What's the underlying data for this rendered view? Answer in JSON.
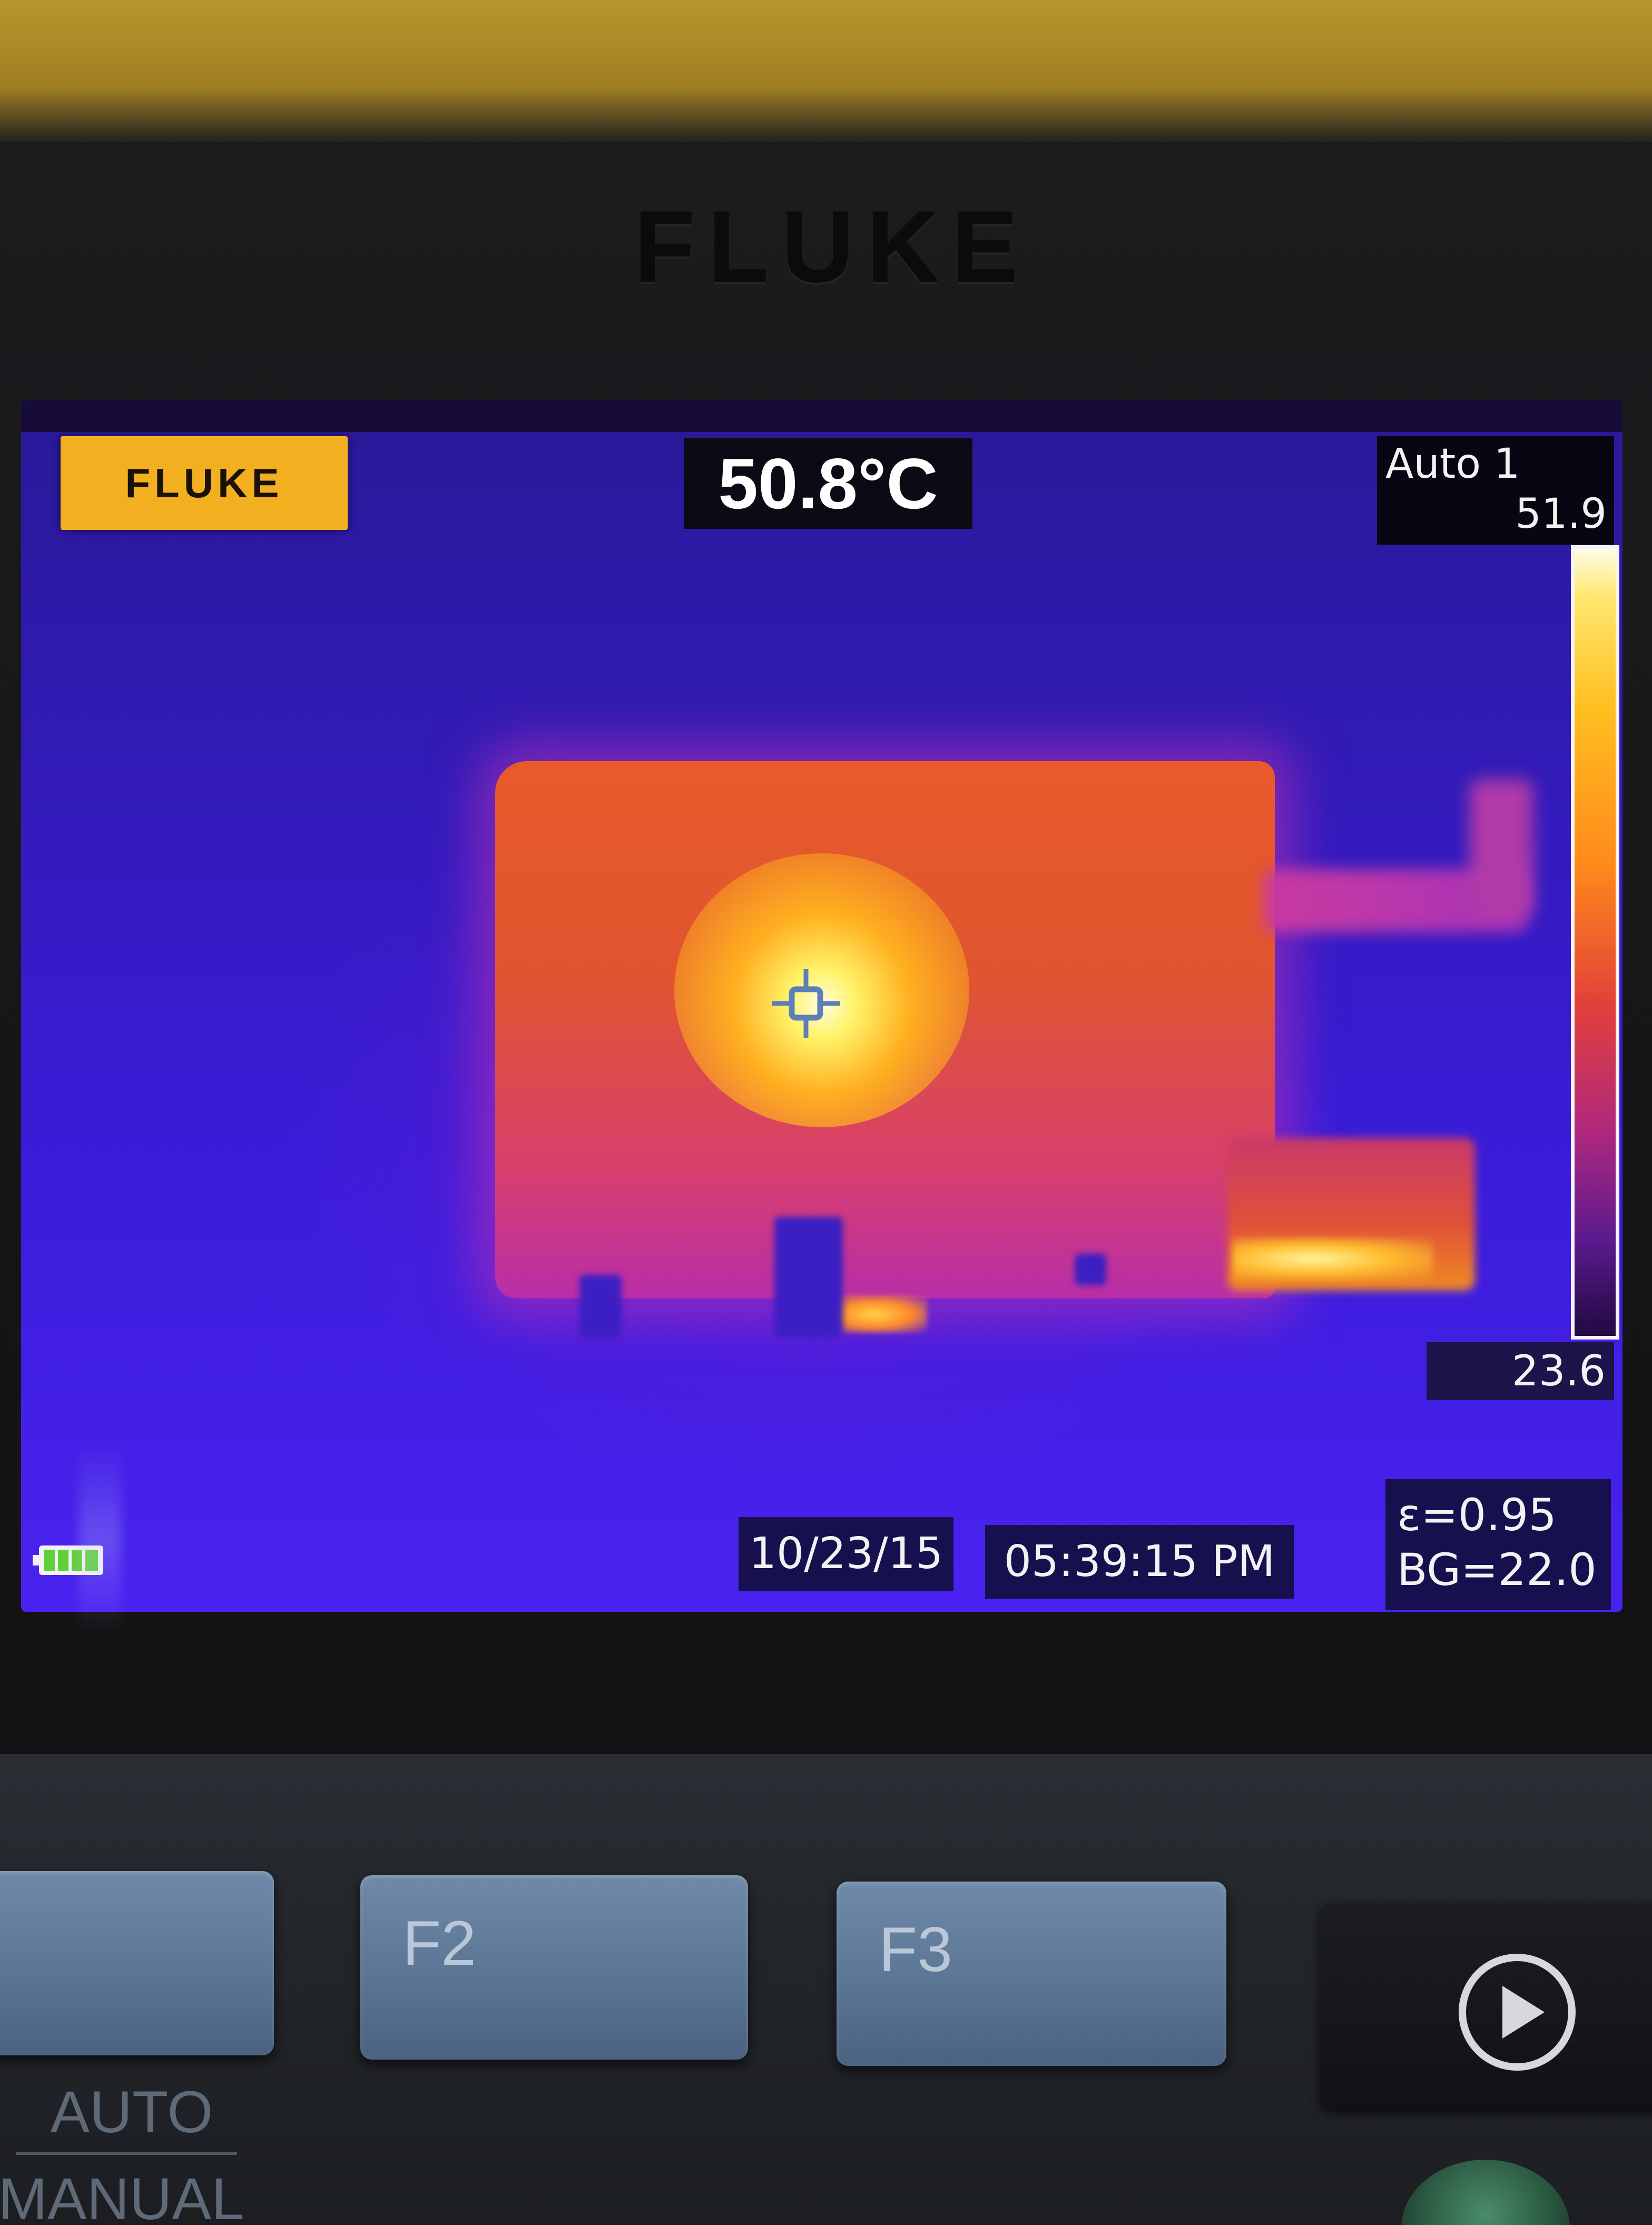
{
  "device": {
    "bezel_brand": "FLUKE",
    "screen": {
      "logo": "FLUKE",
      "center_point_temperature": "50.8°C",
      "palette": {
        "mode": "Auto 1",
        "max": "51.9",
        "min": "23.6",
        "colors": [
          "#fffde8",
          "#ffc020",
          "#e2403a",
          "#b0287e",
          "#200a40"
        ]
      },
      "date": "10/23/15",
      "time": "05:39:15 PM",
      "emissivity": "ε=0.95",
      "background_temperature": "BG=22.0",
      "battery_icon": "battery-icon"
    },
    "softkeys": {
      "f1": "",
      "f2": "F2",
      "f3": "F3",
      "play_icon": "play-icon"
    },
    "labels": {
      "auto": "AUTO",
      "manual": "MANUAL"
    }
  }
}
